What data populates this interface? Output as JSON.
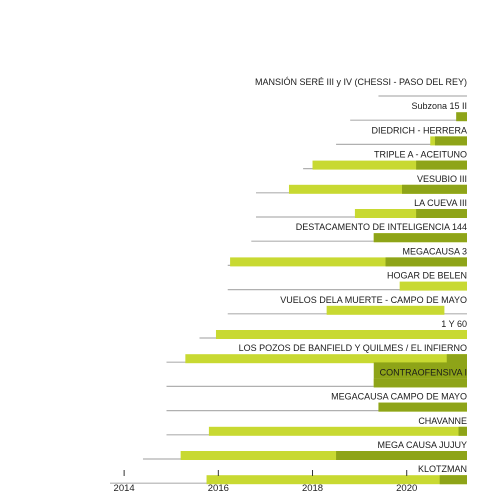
{
  "colors": {
    "line": "#b0b0b0",
    "light": "#c8d932",
    "dark": "#8ea418",
    "axis": "#333333",
    "text": "#1a1a1a"
  },
  "chart_data": {
    "type": "bar",
    "title": "",
    "xlabel": "",
    "ylabel": "",
    "xlim": [
      2013.7,
      2021.28
    ],
    "x_ticks": [
      2014,
      2016,
      2018,
      2020
    ],
    "legend": "none",
    "grid": false,
    "series_meaning": [
      {
        "key": "line",
        "color": "#b0b0b0"
      },
      {
        "key": "light",
        "color": "#c8d932"
      },
      {
        "key": "dark",
        "color": "#8ea418"
      }
    ],
    "cases": [
      {
        "label": "MANSIÓN SERÉ III y IV (CHESSI - PASO DEL REY)",
        "line": [
          2019.4,
          2021.28
        ],
        "light": null,
        "dark": null
      },
      {
        "label": "Subzona 15 II",
        "line": [
          2018.8,
          2021.28
        ],
        "light": null,
        "dark": [
          2021.05,
          2021.28
        ]
      },
      {
        "label": "DIEDRICH - HERRERA",
        "line": [
          2018.5,
          2021.28
        ],
        "light": [
          2020.5,
          2021.28
        ],
        "dark": [
          2020.6,
          2021.28
        ]
      },
      {
        "label": "TRIPLE A - ACEITUNO",
        "line": [
          2017.8,
          2021.28
        ],
        "light": [
          2018.0,
          2021.28
        ],
        "dark": [
          2020.2,
          2021.28
        ]
      },
      {
        "label": "VESUBIO III",
        "line": [
          2016.8,
          2021.28
        ],
        "light": [
          2017.5,
          2021.28
        ],
        "dark": [
          2019.9,
          2021.28
        ]
      },
      {
        "label": "LA CUEVA III",
        "line": [
          2016.8,
          2021.28
        ],
        "light": [
          2018.9,
          2021.28
        ],
        "dark": [
          2020.2,
          2021.28
        ]
      },
      {
        "label": "DESTACAMENTO DE INTELIGENCIA 144",
        "line": [
          2016.7,
          2021.28
        ],
        "light": [
          2019.3,
          2021.28
        ],
        "dark": [
          2019.3,
          2021.28
        ]
      },
      {
        "label": "MEGACAUSA 3",
        "line": [
          2016.2,
          2021.28
        ],
        "light": [
          2016.25,
          2021.28
        ],
        "dark": [
          2019.55,
          2021.28
        ]
      },
      {
        "label": "HOGAR DE BELEN",
        "line": [
          2016.2,
          2021.28
        ],
        "light": [
          2019.85,
          2021.28
        ],
        "dark": null
      },
      {
        "label": "VUELOS DELA MUERTE - CAMPO DE MAYO",
        "line": [
          2016.2,
          2021.28
        ],
        "light": [
          2018.3,
          2020.8
        ],
        "dark": null
      },
      {
        "label": "1 Y 60",
        "line": [
          2015.6,
          2021.28
        ],
        "light": [
          2015.95,
          2021.28
        ],
        "dark": null
      },
      {
        "label": "LOS POZOS DE BANFIELD Y QUILMES / EL INFIERNO",
        "line": [
          2014.9,
          2021.28
        ],
        "light": [
          2015.3,
          2021.28
        ],
        "dark": [
          2020.85,
          2021.28
        ]
      },
      {
        "label": "CONTRAOFENSIVA I",
        "line": [
          2014.9,
          2021.28
        ],
        "light": [
          2019.3,
          2021.28
        ],
        "dark": [
          2019.3,
          2021.28
        ]
      },
      {
        "label": "MEGACAUSA CAMPO DE MAYO",
        "line": [
          2014.9,
          2021.28
        ],
        "light": [
          2019.4,
          2021.28
        ],
        "dark": [
          2019.4,
          2021.28
        ]
      },
      {
        "label": "CHAVANNE",
        "line": [
          2014.9,
          2021.28
        ],
        "light": [
          2015.8,
          2021.28
        ],
        "dark": [
          2021.1,
          2021.28
        ]
      },
      {
        "label": "MEGA CAUSA JUJUY",
        "line": [
          2014.4,
          2021.28
        ],
        "light": [
          2015.2,
          2021.28
        ],
        "dark": [
          2018.5,
          2021.28
        ]
      },
      {
        "label": "KLOTZMAN",
        "line": [
          2013.7,
          2021.28
        ],
        "light": [
          2015.75,
          2021.28
        ],
        "dark": [
          2020.7,
          2021.28
        ]
      }
    ]
  }
}
